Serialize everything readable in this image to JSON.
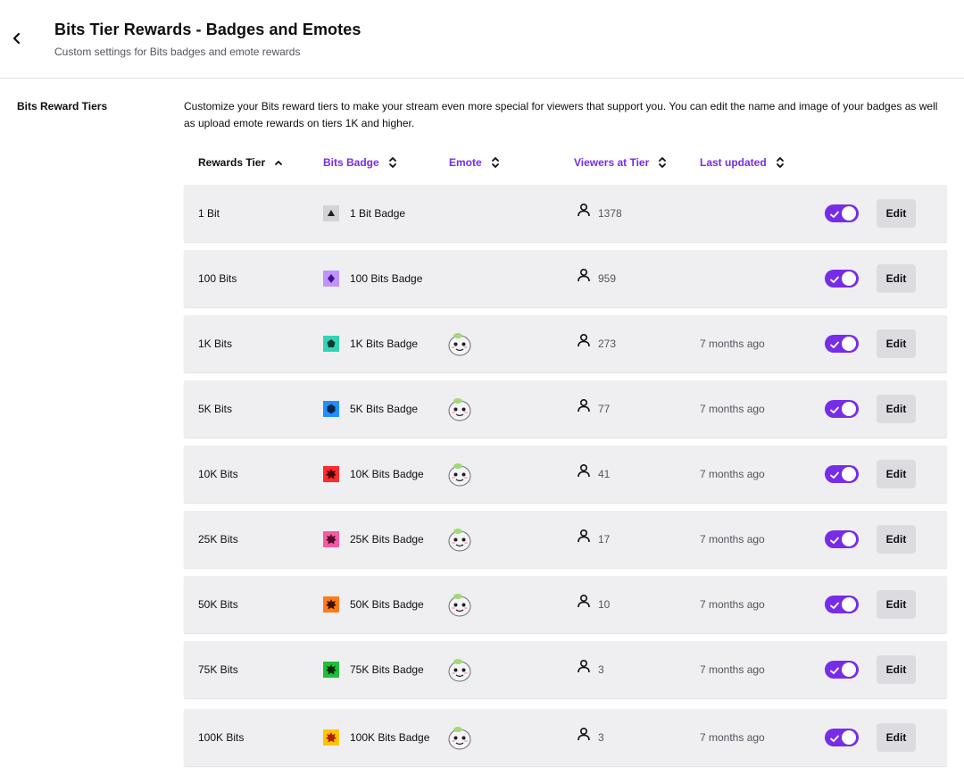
{
  "header": {
    "title": "Bits Tier Rewards - Badges and Emotes",
    "subtitle": "Custom settings for Bits badges and emote rewards"
  },
  "section": {
    "label": "Bits Reward Tiers",
    "description": "Customize your Bits reward tiers to make your stream even more special for viewers that support you. You can edit the name and image of your badges as well as upload emote rewards on tiers 1K and higher."
  },
  "columns": {
    "tier": "Rewards Tier",
    "badge": "Bits Badge",
    "emote": "Emote",
    "viewers": "Viewers at Tier",
    "updated": "Last updated"
  },
  "colors": {
    "accent": "#772ce8",
    "row_bg": "#efeff1"
  },
  "rows": [
    {
      "tier": "1 Bit",
      "badge": "1 Bit Badge",
      "badge_color": "#d3d3d7",
      "gem_color": "#1f1f23",
      "emote": false,
      "viewers": "1378",
      "updated": "",
      "enabled": true,
      "edit": "Edit"
    },
    {
      "tier": "100 Bits",
      "badge": "100 Bits Badge",
      "badge_color": "#bf94ff",
      "gem_color": "#451093",
      "emote": false,
      "viewers": "959",
      "updated": "",
      "enabled": true,
      "edit": "Edit"
    },
    {
      "tier": "1K Bits",
      "badge": "1K Bits Badge",
      "badge_color": "#34d3b4",
      "gem_color": "#0b3b32",
      "emote": true,
      "viewers": "273",
      "updated": "7 months ago",
      "enabled": true,
      "edit": "Edit"
    },
    {
      "tier": "5K Bits",
      "badge": "5K Bits Badge",
      "badge_color": "#1f8fff",
      "gem_color": "#062748",
      "emote": true,
      "viewers": "77",
      "updated": "7 months ago",
      "enabled": true,
      "edit": "Edit"
    },
    {
      "tier": "10K Bits",
      "badge": "10K Bits Badge",
      "badge_color": "#ff2b2b",
      "gem_color": "#4a0000",
      "emote": true,
      "viewers": "41",
      "updated": "7 months ago",
      "enabled": true,
      "edit": "Edit"
    },
    {
      "tier": "25K Bits",
      "badge": "25K Bits Badge",
      "badge_color": "#f75aa0",
      "gem_color": "#4d0a2a",
      "emote": true,
      "viewers": "17",
      "updated": "7 months ago",
      "enabled": true,
      "edit": "Edit"
    },
    {
      "tier": "50K Bits",
      "badge": "50K Bits Badge",
      "badge_color": "#ff7b1a",
      "gem_color": "#3d1600",
      "emote": true,
      "viewers": "10",
      "updated": "7 months ago",
      "enabled": true,
      "edit": "Edit"
    },
    {
      "tier": "75K Bits",
      "badge": "75K Bits Badge",
      "badge_color": "#1fbf3a",
      "gem_color": "#062b0d",
      "emote": true,
      "viewers": "3",
      "updated": "7 months ago",
      "enabled": true,
      "edit": "Edit"
    },
    {
      "tier": "100K Bits",
      "badge": "100K Bits Badge",
      "badge_color": "#ffc400",
      "gem_color": "#b21d00",
      "emote": true,
      "viewers": "3",
      "updated": "7 months ago",
      "enabled": true,
      "edit": "Edit"
    }
  ]
}
